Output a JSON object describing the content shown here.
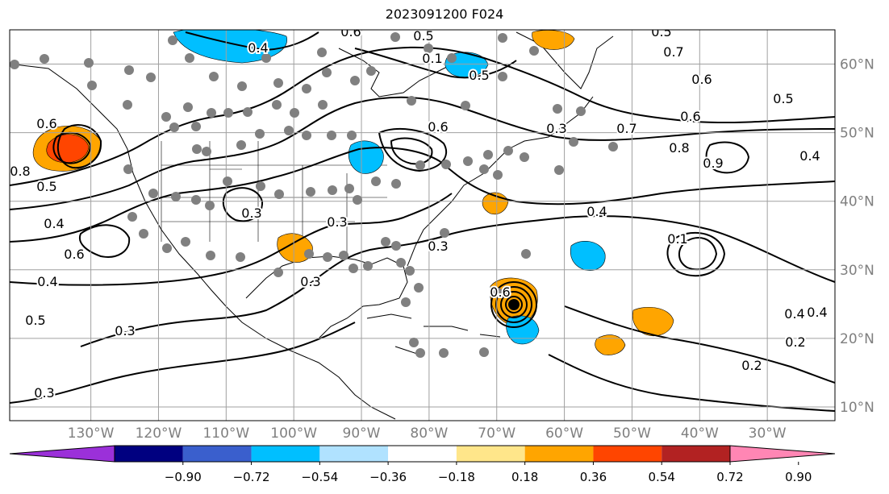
{
  "title": "2023091200 F024",
  "map": {
    "projection": "cylindrical",
    "lon_range": [
      -142,
      -20
    ],
    "lat_range": [
      8,
      65
    ],
    "longitude_labels": [
      "130°W",
      "120°W",
      "110°W",
      "100°W",
      "90°W",
      "80°W",
      "70°W",
      "60°W",
      "50°W",
      "40°W",
      "30°W"
    ],
    "latitude_labels": [
      "10°N",
      "20°N",
      "30°N",
      "40°N",
      "50°N",
      "60°N"
    ],
    "gridlines": true,
    "contour_labels": [
      "0.6",
      "0.5",
      "0.4",
      "0.5",
      "0.1",
      "0.7",
      "0.5",
      "0.6",
      "0.5",
      "0.6",
      "0.6",
      "0.7",
      "0.8",
      "0.9",
      "0.4",
      "0.8",
      "0.6",
      "0.5",
      "0.4",
      "0.3",
      "0.3",
      "0.3",
      "0.3",
      "0.6",
      "0.4",
      "0.5",
      "0.3",
      "0.2",
      "0.4",
      "0.4",
      "0.2",
      "0.3",
      "0.6",
      "0.1",
      "0.3",
      "0.4"
    ]
  },
  "colorbar": {
    "tick_labels": [
      "−0.90",
      "−0.72",
      "−0.54",
      "−0.36",
      "−0.18",
      "0.18",
      "0.36",
      "0.54",
      "0.72",
      "0.90"
    ],
    "colors": [
      "#9b30d9",
      "#000080",
      "#3a5fcd",
      "#00bfff",
      "#b0e2ff",
      "#ffffff",
      "#ffe68a",
      "#ffa500",
      "#ff4500",
      "#b22222",
      "#ff86b4"
    ],
    "extend": "both"
  }
}
